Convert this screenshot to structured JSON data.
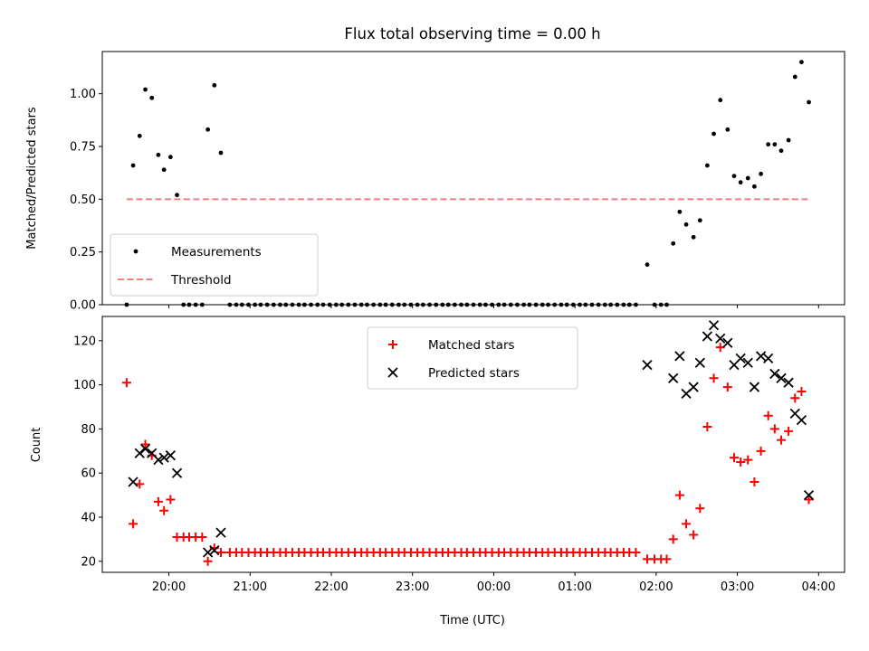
{
  "title": "Flux total observing time = 0.00 h",
  "chart_data": [
    {
      "type": "scatter",
      "title": "Flux total observing time = 0.00 h",
      "xlabel": "",
      "ylabel": "Matched/Predicted stars",
      "x_axis": "time (hours after 00:00 UTC, values below 0 are previous evening)",
      "xlim": [
        -4.82,
        4.32
      ],
      "ylim": [
        0.0,
        1.2
      ],
      "yticks": [
        "0.00",
        "0.25",
        "0.50",
        "0.75",
        "1.00"
      ],
      "yticks_values": [
        0.0,
        0.25,
        0.5,
        0.75,
        1.0
      ],
      "legend": "lower-left",
      "series": [
        {
          "name": "Measurements",
          "marker": "dot",
          "color": "#000000",
          "points": [
            [
              -4.52,
              0.0
            ],
            [
              -4.44,
              0.66
            ],
            [
              -4.36,
              0.8
            ],
            [
              -4.29,
              1.02
            ],
            [
              -4.21,
              0.98
            ],
            [
              -4.13,
              0.71
            ],
            [
              -4.06,
              0.64
            ],
            [
              -3.98,
              0.7
            ],
            [
              -3.9,
              0.52
            ],
            [
              -3.82,
              0.0
            ],
            [
              -3.75,
              0.0
            ],
            [
              -3.67,
              0.0
            ],
            [
              -3.59,
              0.0
            ],
            [
              -3.52,
              0.83
            ],
            [
              -3.44,
              1.04
            ],
            [
              -3.36,
              0.72
            ],
            [
              -3.25,
              0.0
            ],
            [
              -3.17,
              0.0
            ],
            [
              -3.1,
              0.0
            ],
            [
              -3.02,
              0.0
            ],
            [
              -2.94,
              0.0
            ],
            [
              -2.87,
              0.0
            ],
            [
              -2.79,
              0.0
            ],
            [
              -2.71,
              0.0
            ],
            [
              -2.63,
              0.0
            ],
            [
              -2.56,
              0.0
            ],
            [
              -2.48,
              0.0
            ],
            [
              -2.4,
              0.0
            ],
            [
              -2.33,
              0.0
            ],
            [
              -2.25,
              0.0
            ],
            [
              -2.17,
              0.0
            ],
            [
              -2.1,
              0.0
            ],
            [
              -2.02,
              0.0
            ],
            [
              -1.94,
              0.0
            ],
            [
              -1.87,
              0.0
            ],
            [
              -1.79,
              0.0
            ],
            [
              -1.71,
              0.0
            ],
            [
              -1.63,
              0.0
            ],
            [
              -1.56,
              0.0
            ],
            [
              -1.48,
              0.0
            ],
            [
              -1.4,
              0.0
            ],
            [
              -1.33,
              0.0
            ],
            [
              -1.25,
              0.0
            ],
            [
              -1.17,
              0.0
            ],
            [
              -1.1,
              0.0
            ],
            [
              -1.02,
              0.0
            ],
            [
              -0.94,
              0.0
            ],
            [
              -0.87,
              0.0
            ],
            [
              -0.79,
              0.0
            ],
            [
              -0.71,
              0.0
            ],
            [
              -0.63,
              0.0
            ],
            [
              -0.56,
              0.0
            ],
            [
              -0.48,
              0.0
            ],
            [
              -0.4,
              0.0
            ],
            [
              -0.33,
              0.0
            ],
            [
              -0.25,
              0.0
            ],
            [
              -0.17,
              0.0
            ],
            [
              -0.1,
              0.0
            ],
            [
              -0.02,
              0.0
            ],
            [
              0.06,
              0.0
            ],
            [
              0.13,
              0.0
            ],
            [
              0.21,
              0.0
            ],
            [
              0.29,
              0.0
            ],
            [
              0.37,
              0.0
            ],
            [
              0.44,
              0.0
            ],
            [
              0.52,
              0.0
            ],
            [
              0.6,
              0.0
            ],
            [
              0.67,
              0.0
            ],
            [
              0.75,
              0.0
            ],
            [
              0.83,
              0.0
            ],
            [
              0.9,
              0.0
            ],
            [
              0.98,
              0.0
            ],
            [
              1.06,
              0.0
            ],
            [
              1.13,
              0.0
            ],
            [
              1.21,
              0.0
            ],
            [
              1.29,
              0.0
            ],
            [
              1.37,
              0.0
            ],
            [
              1.44,
              0.0
            ],
            [
              1.52,
              0.0
            ],
            [
              1.6,
              0.0
            ],
            [
              1.67,
              0.0
            ],
            [
              1.75,
              0.0
            ],
            [
              1.89,
              0.19
            ],
            [
              1.98,
              0.0
            ],
            [
              2.06,
              0.0
            ],
            [
              2.13,
              0.0
            ],
            [
              2.21,
              0.29
            ],
            [
              2.29,
              0.44
            ],
            [
              2.37,
              0.38
            ],
            [
              2.46,
              0.32
            ],
            [
              2.54,
              0.4
            ],
            [
              2.63,
              0.66
            ],
            [
              2.71,
              0.81
            ],
            [
              2.79,
              0.97
            ],
            [
              2.88,
              0.83
            ],
            [
              2.96,
              0.61
            ],
            [
              3.04,
              0.58
            ],
            [
              3.13,
              0.6
            ],
            [
              3.21,
              0.56
            ],
            [
              3.29,
              0.62
            ],
            [
              3.38,
              0.76
            ],
            [
              3.46,
              0.76
            ],
            [
              3.54,
              0.73
            ],
            [
              3.63,
              0.78
            ],
            [
              3.71,
              1.08
            ],
            [
              3.79,
              1.15
            ],
            [
              3.88,
              0.96
            ]
          ]
        },
        {
          "name": "Threshold",
          "marker": "dashed-line",
          "color": "#f08080",
          "points": [
            [
              -4.52,
              0.5
            ],
            [
              3.88,
              0.5
            ]
          ]
        }
      ]
    },
    {
      "type": "scatter",
      "title": "",
      "xlabel": "Time (UTC)",
      "ylabel": "Count",
      "xlim": [
        -4.82,
        4.32
      ],
      "ylim": [
        15,
        131
      ],
      "yticks": [
        "20",
        "40",
        "60",
        "80",
        "100",
        "120"
      ],
      "yticks_values": [
        20,
        40,
        60,
        80,
        100,
        120
      ],
      "xticks": [
        "20:00",
        "21:00",
        "22:00",
        "23:00",
        "00:00",
        "01:00",
        "02:00",
        "03:00",
        "04:00"
      ],
      "xticks_values": [
        -4,
        -3,
        -2,
        -1,
        0,
        1,
        2,
        3,
        4
      ],
      "legend": "upper-center",
      "series": [
        {
          "name": "Matched stars",
          "marker": "plus",
          "color": "#ff0000",
          "points": [
            [
              -4.52,
              101
            ],
            [
              -4.44,
              37
            ],
            [
              -4.36,
              55
            ],
            [
              -4.29,
              73
            ],
            [
              -4.21,
              68
            ],
            [
              -4.13,
              47
            ],
            [
              -4.06,
              43
            ],
            [
              -3.98,
              48
            ],
            [
              -3.9,
              31
            ],
            [
              -3.82,
              31
            ],
            [
              -3.75,
              31
            ],
            [
              -3.67,
              31
            ],
            [
              -3.59,
              31
            ],
            [
              -3.52,
              20
            ],
            [
              -3.44,
              26
            ],
            [
              -3.36,
              24
            ],
            [
              -3.25,
              24
            ],
            [
              -3.17,
              24
            ],
            [
              -3.1,
              24
            ],
            [
              -3.02,
              24
            ],
            [
              -2.94,
              24
            ],
            [
              -2.87,
              24
            ],
            [
              -2.79,
              24
            ],
            [
              -2.71,
              24
            ],
            [
              -2.63,
              24
            ],
            [
              -2.56,
              24
            ],
            [
              -2.48,
              24
            ],
            [
              -2.4,
              24
            ],
            [
              -2.33,
              24
            ],
            [
              -2.25,
              24
            ],
            [
              -2.17,
              24
            ],
            [
              -2.1,
              24
            ],
            [
              -2.02,
              24
            ],
            [
              -1.94,
              24
            ],
            [
              -1.87,
              24
            ],
            [
              -1.79,
              24
            ],
            [
              -1.71,
              24
            ],
            [
              -1.63,
              24
            ],
            [
              -1.56,
              24
            ],
            [
              -1.48,
              24
            ],
            [
              -1.4,
              24
            ],
            [
              -1.33,
              24
            ],
            [
              -1.25,
              24
            ],
            [
              -1.17,
              24
            ],
            [
              -1.1,
              24
            ],
            [
              -1.02,
              24
            ],
            [
              -0.94,
              24
            ],
            [
              -0.87,
              24
            ],
            [
              -0.79,
              24
            ],
            [
              -0.71,
              24
            ],
            [
              -0.63,
              24
            ],
            [
              -0.56,
              24
            ],
            [
              -0.48,
              24
            ],
            [
              -0.4,
              24
            ],
            [
              -0.33,
              24
            ],
            [
              -0.25,
              24
            ],
            [
              -0.17,
              24
            ],
            [
              -0.1,
              24
            ],
            [
              -0.02,
              24
            ],
            [
              0.06,
              24
            ],
            [
              0.13,
              24
            ],
            [
              0.21,
              24
            ],
            [
              0.29,
              24
            ],
            [
              0.37,
              24
            ],
            [
              0.44,
              24
            ],
            [
              0.52,
              24
            ],
            [
              0.6,
              24
            ],
            [
              0.67,
              24
            ],
            [
              0.75,
              24
            ],
            [
              0.83,
              24
            ],
            [
              0.9,
              24
            ],
            [
              0.98,
              24
            ],
            [
              1.06,
              24
            ],
            [
              1.13,
              24
            ],
            [
              1.21,
              24
            ],
            [
              1.29,
              24
            ],
            [
              1.37,
              24
            ],
            [
              1.44,
              24
            ],
            [
              1.52,
              24
            ],
            [
              1.6,
              24
            ],
            [
              1.67,
              24
            ],
            [
              1.75,
              24
            ],
            [
              1.89,
              21
            ],
            [
              1.98,
              21
            ],
            [
              2.06,
              21
            ],
            [
              2.13,
              21
            ],
            [
              2.21,
              30
            ],
            [
              2.29,
              50
            ],
            [
              2.37,
              37
            ],
            [
              2.46,
              32
            ],
            [
              2.54,
              44
            ],
            [
              2.63,
              81
            ],
            [
              2.71,
              103
            ],
            [
              2.79,
              117
            ],
            [
              2.88,
              99
            ],
            [
              2.96,
              67
            ],
            [
              3.04,
              65
            ],
            [
              3.13,
              66
            ],
            [
              3.21,
              56
            ],
            [
              3.29,
              70
            ],
            [
              3.38,
              86
            ],
            [
              3.46,
              80
            ],
            [
              3.54,
              75
            ],
            [
              3.63,
              79
            ],
            [
              3.71,
              94
            ],
            [
              3.79,
              97
            ],
            [
              3.88,
              48
            ]
          ]
        },
        {
          "name": "Predicted stars",
          "marker": "x",
          "color": "#000000",
          "points": [
            [
              -4.44,
              56
            ],
            [
              -4.36,
              69
            ],
            [
              -4.29,
              71
            ],
            [
              -4.21,
              69
            ],
            [
              -4.13,
              66
            ],
            [
              -4.06,
              67
            ],
            [
              -3.98,
              68
            ],
            [
              -3.9,
              60
            ],
            [
              -3.52,
              24
            ],
            [
              -3.44,
              25
            ],
            [
              -3.36,
              33
            ],
            [
              1.89,
              109
            ],
            [
              2.21,
              103
            ],
            [
              2.29,
              113
            ],
            [
              2.37,
              96
            ],
            [
              2.46,
              99
            ],
            [
              2.54,
              110
            ],
            [
              2.63,
              122
            ],
            [
              2.71,
              127
            ],
            [
              2.79,
              121
            ],
            [
              2.88,
              119
            ],
            [
              2.96,
              109
            ],
            [
              3.04,
              112
            ],
            [
              3.13,
              110
            ],
            [
              3.21,
              99
            ],
            [
              3.29,
              113
            ],
            [
              3.38,
              112
            ],
            [
              3.46,
              105
            ],
            [
              3.54,
              103
            ],
            [
              3.63,
              101
            ],
            [
              3.71,
              87
            ],
            [
              3.79,
              84
            ],
            [
              3.88,
              50
            ]
          ]
        }
      ]
    }
  ]
}
